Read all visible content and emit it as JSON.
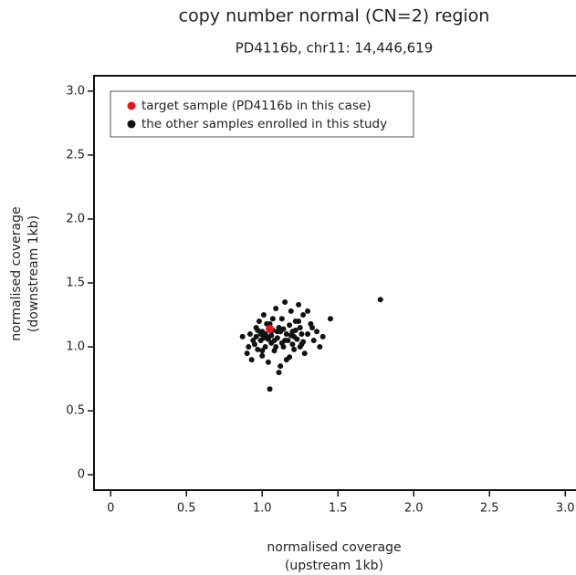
{
  "chart_data": {
    "type": "scatter",
    "title": "copy number normal (CN=2) region",
    "subtitle": "PD4116b, chr11: 14,446,619",
    "x_label": [
      "normalised coverage",
      "(upstream 1kb)"
    ],
    "y_label": [
      "normalised coverage",
      "(downstream 1kb)"
    ],
    "xlim": [
      -0.11,
      3.1
    ],
    "ylim": [
      -0.12,
      3.12
    ],
    "xticks": [
      0,
      0.5,
      {
        "value": 1,
        "label": "1.0"
      },
      1.5,
      {
        "value": 2,
        "label": "2.0"
      },
      2.5,
      {
        "value": 3,
        "label": "3.0"
      }
    ],
    "yticks": [
      0,
      0.5,
      {
        "value": 1,
        "label": "1.0"
      },
      1.5,
      {
        "value": 2,
        "label": "2.0"
      },
      2.5,
      {
        "value": 3,
        "label": "3.0"
      }
    ],
    "legend": "top-left",
    "series": [
      {
        "name": "target sample (PD4116b in this case)",
        "color": "#e8141c",
        "x": [
          1.05
        ],
        "values": [
          1.14
        ]
      },
      {
        "name": "the other samples enrolled in this study",
        "color": "#111111",
        "x": [
          0.87,
          0.9,
          0.92,
          0.93,
          0.95,
          0.96,
          0.97,
          0.98,
          0.99,
          1.0,
          1.0,
          1.01,
          1.02,
          1.03,
          1.04,
          1.05,
          1.06,
          1.07,
          1.08,
          1.09,
          1.1,
          1.11,
          1.12,
          1.13,
          1.14,
          1.15,
          1.16,
          1.17,
          1.18,
          1.19,
          1.2,
          1.21,
          1.22,
          1.23,
          1.24,
          1.25,
          1.26,
          1.27,
          1.28,
          1.3,
          1.32,
          1.34,
          1.36,
          1.38,
          1.45,
          1.78,
          1.05,
          0.94,
          0.97,
          1.0,
          1.03,
          1.06,
          1.09,
          1.12,
          1.15,
          1.18,
          1.21,
          1.24,
          1.27,
          1.3,
          0.91,
          0.96,
          1.02,
          1.08,
          1.14,
          1.2,
          1.26,
          1.33,
          1.4,
          1.11,
          1.16,
          1.22,
          1.04,
          0.99,
          1.07,
          1.13,
          1.19,
          1.25,
          1.01,
          1.1
        ],
        "values": [
          1.08,
          0.95,
          1.1,
          0.9,
          1.02,
          1.15,
          0.98,
          1.2,
          1.05,
          1.12,
          0.93,
          1.25,
          1.0,
          1.08,
          0.88,
          1.18,
          1.03,
          1.13,
          0.97,
          1.3,
          1.07,
          1.15,
          0.85,
          1.22,
          1.0,
          1.35,
          1.1,
          1.05,
          0.92,
          1.28,
          1.12,
          0.98,
          1.2,
          1.06,
          1.33,
          1.15,
          1.02,
          1.25,
          0.95,
          1.1,
          1.18,
          1.05,
          1.12,
          1.0,
          1.22,
          1.37,
          0.67,
          1.05,
          1.13,
          0.97,
          1.18,
          1.09,
          1.0,
          1.12,
          1.05,
          1.17,
          1.08,
          1.2,
          1.04,
          1.28,
          1.0,
          1.08,
          1.1,
          1.05,
          1.14,
          1.02,
          1.1,
          1.15,
          1.08,
          0.8,
          0.9,
          1.13,
          1.06,
          1.1,
          1.22,
          1.03,
          1.09,
          1.0,
          1.07,
          1.12
        ]
      }
    ]
  }
}
